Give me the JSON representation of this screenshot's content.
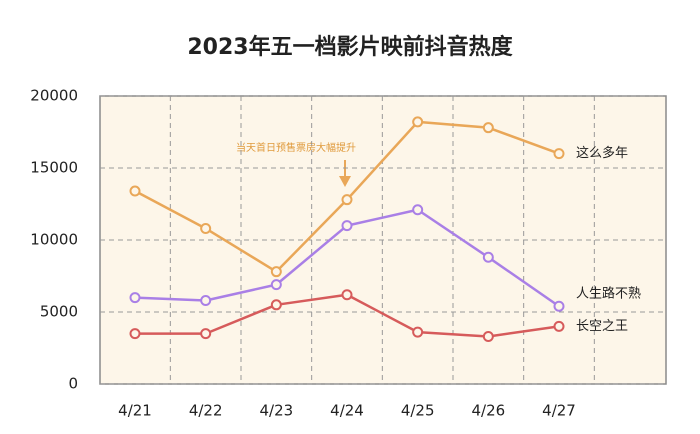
{
  "chart_data": {
    "type": "line",
    "title": "2023年五一档影片映前抖音热度",
    "annotation": "当天首日预售票房大幅提升",
    "categories": [
      "4/21",
      "4/22",
      "4/23",
      "4/24",
      "4/25",
      "4/26",
      "4/27"
    ],
    "series": [
      {
        "name": "这么多年",
        "color": "#e9a758",
        "values": [
          13400,
          10800,
          7800,
          12800,
          18200,
          17800,
          16000
        ]
      },
      {
        "name": "人生路不熟",
        "color": "#a97fe6",
        "values": [
          6000,
          5800,
          6900,
          11000,
          12100,
          8800,
          5400
        ]
      },
      {
        "name": "长空之王",
        "color": "#d65b5b",
        "values": [
          3500,
          3500,
          5500,
          6200,
          3600,
          3300,
          4000
        ]
      }
    ],
    "ylim": [
      0,
      20000
    ],
    "yticks": [
      0,
      5000,
      10000,
      15000,
      20000
    ],
    "grid": true
  }
}
